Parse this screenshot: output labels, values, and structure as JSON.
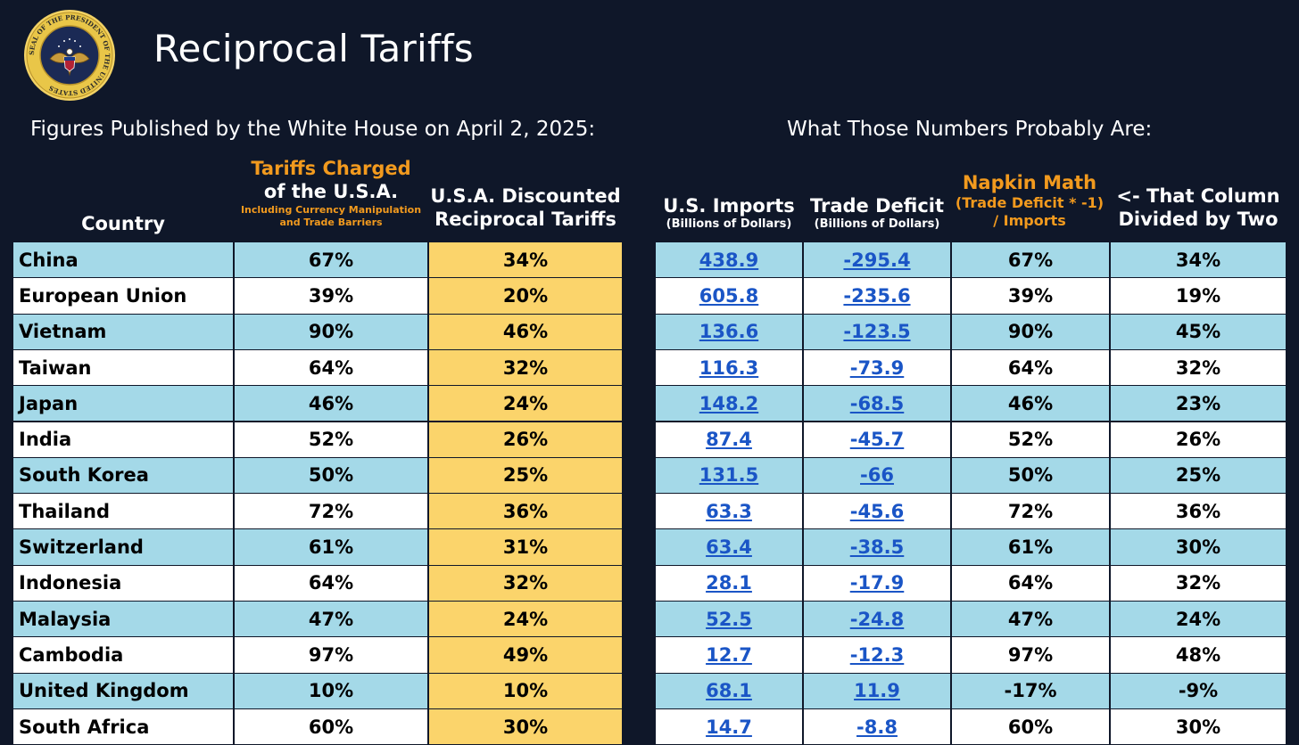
{
  "header": {
    "title": "Reciprocal Tariffs",
    "seal_text": "SEAL OF THE PRESIDENT OF THE UNITED STATES"
  },
  "left_subtitle": "Figures Published by the White House on April 2, 2025:",
  "right_subtitle": "What Those Numbers Probably Are:",
  "columns": {
    "country": "Country",
    "tariffs_main": "Tariffs Charged of the U.S.A.",
    "tariffs_line1": "Tariffs Charged",
    "tariffs_line2": "of the U.S.A.",
    "tariffs_note1": "Including Currency Manipulation",
    "tariffs_note2": "and Trade Barriers",
    "discounted_line1": "U.S.A. Discounted",
    "discounted_line2": "Reciprocal Tariffs",
    "imports_line1": "U.S. Imports",
    "imports_line2": "(Billions of Dollars)",
    "deficit_line1": "Trade Deficit",
    "deficit_line2": "(Billions of Dollars)",
    "napkin_line1": "Napkin Math",
    "napkin_line2": "(Trade Deficit * -1)",
    "napkin_line3": "/ Imports",
    "half_line1": "<- That Column",
    "half_line2": "Divided by Two"
  },
  "colors": {
    "background": "#0f1729",
    "row_blue": "#a4d9e8",
    "row_white": "#ffffff",
    "yellow": "#fbd46b",
    "orange_header": "#f29a1e",
    "link_blue": "#1a55c6"
  },
  "chart_data": {
    "type": "table",
    "title": "Reciprocal Tariffs",
    "headers": [
      "Country",
      "Tariffs Charged of the U.S.A.",
      "U.S.A. Discounted Reciprocal Tariffs",
      "U.S. Imports",
      "Trade Deficit",
      "Napkin Math",
      "<- That Column Divided by Two"
    ],
    "rows": [
      [
        "China",
        "67%",
        "34%",
        "438.9",
        "-295.4",
        "67%",
        "34%"
      ],
      [
        "European Union",
        "39%",
        "20%",
        "605.8",
        "-235.6",
        "39%",
        "19%"
      ],
      [
        "Vietnam",
        "90%",
        "46%",
        "136.6",
        "-123.5",
        "90%",
        "45%"
      ],
      [
        "Taiwan",
        "64%",
        "32%",
        "116.3",
        "-73.9",
        "64%",
        "32%"
      ],
      [
        "Japan",
        "46%",
        "24%",
        "148.2",
        "-68.5",
        "46%",
        "23%"
      ],
      [
        "India",
        "52%",
        "26%",
        "87.4",
        "-45.7",
        "52%",
        "26%"
      ],
      [
        "South Korea",
        "50%",
        "25%",
        "131.5",
        "-66",
        "50%",
        "25%"
      ],
      [
        "Thailand",
        "72%",
        "36%",
        "63.3",
        "-45.6",
        "72%",
        "36%"
      ],
      [
        "Switzerland",
        "61%",
        "31%",
        "63.4",
        "-38.5",
        "61%",
        "30%"
      ],
      [
        "Indonesia",
        "64%",
        "32%",
        "28.1",
        "-17.9",
        "64%",
        "32%"
      ],
      [
        "Malaysia",
        "47%",
        "24%",
        "52.5",
        "-24.8",
        "47%",
        "24%"
      ],
      [
        "Cambodia",
        "97%",
        "49%",
        "12.7",
        "-12.3",
        "97%",
        "48%"
      ],
      [
        "United Kingdom",
        "10%",
        "10%",
        "68.1",
        "11.9",
        "-17%",
        "-9%"
      ],
      [
        "South Africa",
        "60%",
        "30%",
        "14.7",
        "-8.8",
        "60%",
        "30%"
      ]
    ]
  }
}
